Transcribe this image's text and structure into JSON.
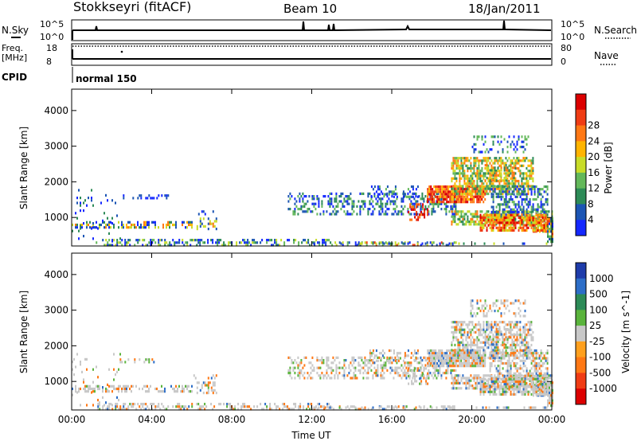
{
  "header": {
    "station": "Stokkseyri (fitACF)",
    "beam": "Beam 10",
    "date": "18/Jan/2011"
  },
  "top_labels": {
    "nsky": "N.Sky",
    "nsky_top": "10^5",
    "nsky_bottom": "10^0",
    "nsearch": "N.Search",
    "nsearch_top": "10^5",
    "nsearch_bottom": "10^0",
    "freq_line1": "Freq.",
    "freq_line2": "[MHz]",
    "freq_top": "18",
    "freq_bottom": "8",
    "nave": "Nave",
    "nave_top": "80",
    "nave_bottom": "0",
    "cpid": "CPID",
    "cpid_value": "normal 150"
  },
  "colors": {
    "power": [
      "#1428ff",
      "#1c55b4",
      "#2d8b57",
      "#63b85a",
      "#c8dc28",
      "#ffb400",
      "#ff7814",
      "#f03c14",
      "#dc0000"
    ],
    "velocity": [
      "#1e3caa",
      "#2d6ec8",
      "#2d8b57",
      "#5ab43c",
      "#c8c8c8",
      "#ffa01e",
      "#ff7814",
      "#f03c14",
      "#dc0000"
    ]
  },
  "chart_data": [
    {
      "type": "heatmap",
      "name": "power",
      "x_ticks": [
        "00:00",
        "04:00",
        "08:00",
        "12:00",
        "16:00",
        "20:00",
        "00:00"
      ],
      "xlabel": "Time UT",
      "ylabel": "Slant Range [km]",
      "y_ticks": [
        "1000",
        "2000",
        "3000",
        "4000"
      ],
      "ylim": [
        200,
        4600
      ],
      "colorbar_label": "Power [dB]",
      "colorbar_ticks": [
        "4",
        "8",
        "12",
        "16",
        "20",
        "24",
        "28"
      ],
      "clim": [
        0,
        30
      ]
    },
    {
      "type": "heatmap",
      "name": "velocity",
      "x_ticks": [
        "00:00",
        "04:00",
        "08:00",
        "12:00",
        "16:00",
        "20:00",
        "00:00"
      ],
      "xlabel": "Time UT",
      "ylabel": "Slant Range [km]",
      "y_ticks": [
        "1000",
        "2000",
        "3000",
        "4000"
      ],
      "ylim": [
        200,
        4600
      ],
      "colorbar_label": "Velocity [m s^-1]",
      "colorbar_ticks": [
        "1000",
        "500",
        "100",
        "25",
        "-25",
        "-100",
        "-500",
        "-1000"
      ]
    }
  ]
}
